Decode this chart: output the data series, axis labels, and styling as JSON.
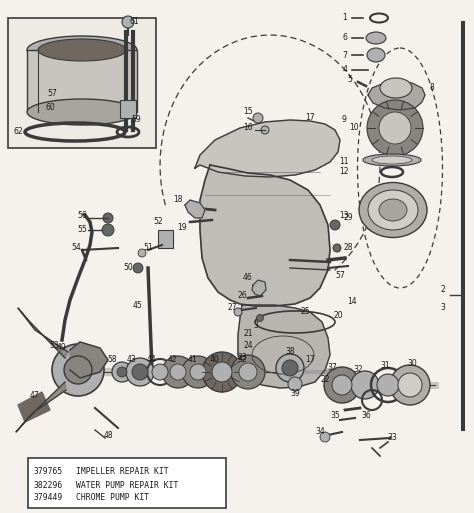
{
  "background_color": "#f5f2ed",
  "text_color": "#1a1a1a",
  "dgray": "#3a3a3a",
  "mgray": "#666666",
  "lgray": "#b0b0b0",
  "part_numbers": [
    {
      "num": "379765",
      "desc": "IMPELLER REPAIR KIT"
    },
    {
      "num": "382296",
      "desc": "WATER PUMP REPAIR KIT"
    },
    {
      "num": "379449",
      "desc": "CHROME PUMP KIT"
    }
  ],
  "figsize": [
    4.74,
    5.13
  ],
  "dpi": 100
}
